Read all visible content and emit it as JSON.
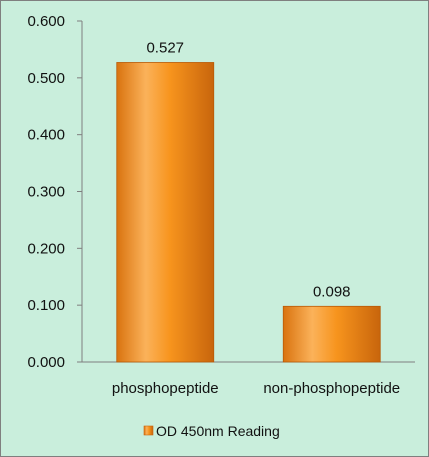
{
  "chart_data": {
    "type": "bar",
    "title": "",
    "xlabel": "",
    "ylabel": "",
    "categories": [
      "phosphopeptide",
      "non-phosphopeptide"
    ],
    "series": [
      {
        "name": "OD 450nm Reading",
        "values": [
          0.527,
          0.098
        ],
        "data_labels": [
          "0.527",
          "0.098"
        ]
      }
    ],
    "ylim": [
      0,
      0.6
    ],
    "y_ticks": [
      "0.000",
      "0.100",
      "0.200",
      "0.300",
      "0.400",
      "0.500",
      "0.600"
    ],
    "grid": false,
    "legend_position": "bottom",
    "colors": {
      "bar_light": "#fbb25a",
      "bar_mid": "#f7941d",
      "bar_dark": "#c8650c",
      "background": "#c9eedc",
      "axis": "#7f7f7f"
    }
  }
}
